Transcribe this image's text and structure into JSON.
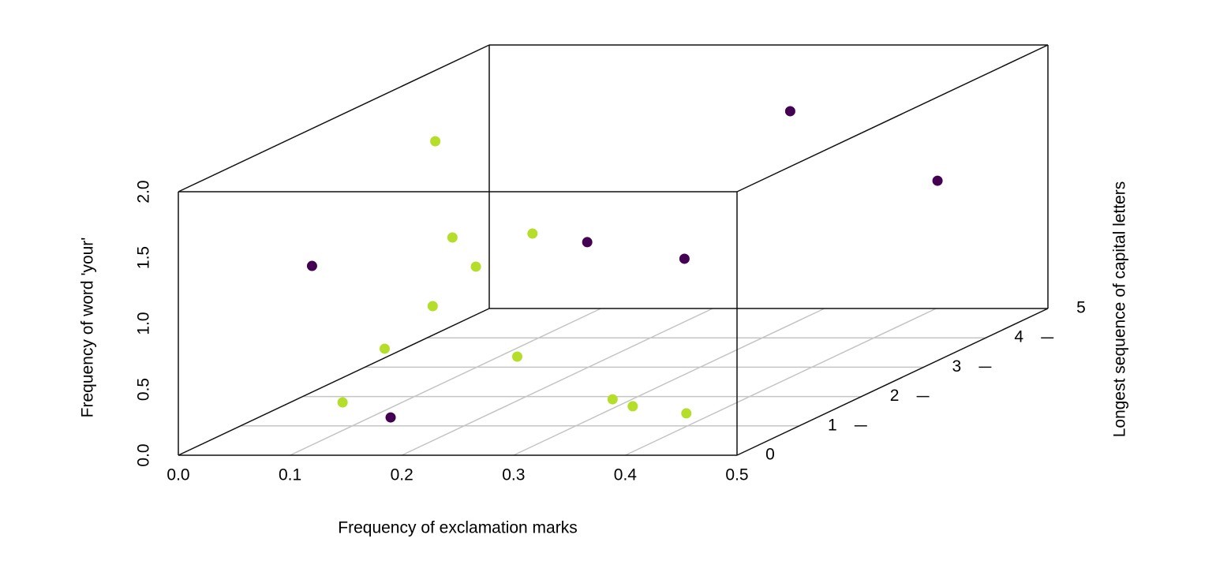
{
  "chart_data": {
    "type": "scatter3d",
    "x_label": "Frequency of exclamation marks",
    "z_label": "Frequency of word 'your'",
    "y_label": "Longest sequence of capital letters",
    "xlim": [
      0,
      0.5
    ],
    "xticks": [
      {
        "value": 0,
        "label": "0.0"
      },
      0.1,
      0.2,
      0.3,
      0.4,
      0.5
    ],
    "ylim": [
      0,
      5
    ],
    "yticks": [
      0,
      1,
      2,
      3,
      4,
      5
    ],
    "zlim": [
      0,
      2
    ],
    "zticks": [
      {
        "value": 0,
        "label": "0.0"
      },
      0.5,
      {
        "value": 1,
        "label": "1.0"
      },
      1.5,
      {
        "value": 2,
        "label": "2.0"
      }
    ],
    "grid": true,
    "series": [
      {
        "color": "#440154",
        "x": [
          0.325,
          0.429,
          0.064,
          0.199,
          0.286,
          0.19
        ],
        "y": [
          4,
          4.5,
          1,
          3,
          3,
          0
        ],
        "z": [
          1.72,
          1.081,
          1.214,
          0.949,
          0.823,
          0.287
        ]
      },
      {
        "color": "#b5de2b",
        "x": [
          0.063,
          0.172,
          0.134,
          0.155,
          0.15,
          0.129,
          0.192,
          0.147,
          0.333,
          0.351,
          0.399
        ],
        "y": [
          3,
          1,
          2,
          2,
          3,
          1,
          2,
          0,
          1,
          1,
          1
        ],
        "z": [
          1.715,
          0.909,
          1.207,
          0.986,
          1.014,
          0.586,
          0.303,
          0.401,
          0.202,
          0.149,
          0.095
        ]
      }
    ]
  }
}
